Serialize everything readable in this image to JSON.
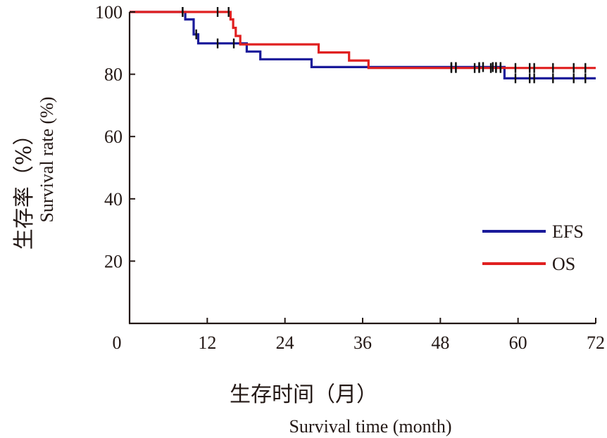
{
  "chart_data": {
    "type": "line",
    "subtype": "kaplan-meier step",
    "title": "",
    "xlabel_cn": "生存时间（月）",
    "xlabel_en": "Survival time (month)",
    "ylabel_cn": "生存率（%）",
    "ylabel_en": "Survival rate (%)",
    "xlim": [
      0,
      72
    ],
    "ylim": [
      0,
      100
    ],
    "x_ticks": [
      0,
      12,
      24,
      36,
      48,
      60,
      72
    ],
    "y_ticks": [
      20,
      40,
      60,
      80,
      100
    ],
    "grid": false,
    "legend_position": "lower-right",
    "series": [
      {
        "name": "EFS",
        "color": "#1a1a9a",
        "steps": [
          [
            0,
            100
          ],
          [
            8.6,
            97.6
          ],
          [
            9.9,
            92.8
          ],
          [
            10.6,
            89.9
          ],
          [
            18.1,
            87.3
          ],
          [
            20.2,
            84.8
          ],
          [
            28.1,
            82.3
          ],
          [
            57.9,
            78.7
          ],
          [
            72,
            78.7
          ]
        ],
        "censor_x": [
          8.2,
          10.3,
          13.6,
          16.1,
          49.7,
          50.4,
          54.0,
          54.6,
          56.1,
          56.6,
          57.3,
          59.6,
          61.8,
          62.5,
          65.4,
          68.6,
          70.4
        ]
      },
      {
        "name": "OS",
        "color": "#e02020",
        "steps": [
          [
            0,
            100
          ],
          [
            15.6,
            97.6
          ],
          [
            16.0,
            94.9
          ],
          [
            16.4,
            92.3
          ],
          [
            17.1,
            89.6
          ],
          [
            29.2,
            87.0
          ],
          [
            33.9,
            84.4
          ],
          [
            36.9,
            82.0
          ],
          [
            72,
            82.0
          ]
        ],
        "censor_x": [
          8.2,
          13.6,
          15.3,
          49.7,
          50.4,
          53.3,
          54.0,
          55.8,
          56.6,
          57.3,
          59.6,
          61.8,
          62.5,
          65.4,
          68.6,
          70.4
        ]
      }
    ]
  }
}
